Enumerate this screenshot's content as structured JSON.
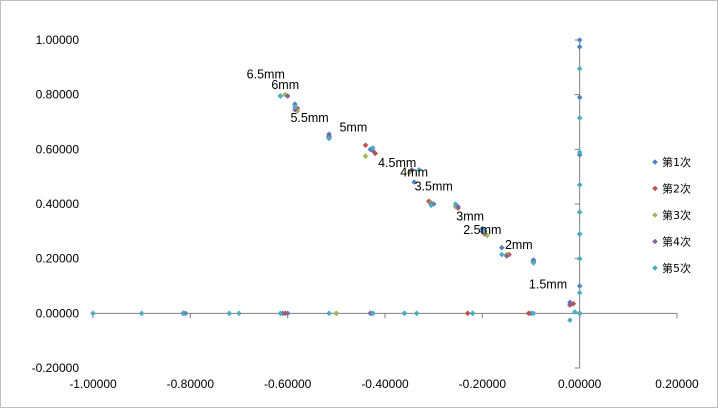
{
  "chart_data": {
    "type": "scatter",
    "xlim": [
      -1.0,
      0.2
    ],
    "ylim": [
      -0.2,
      1.0
    ],
    "x_ticks": [
      -1.0,
      -0.8,
      -0.6,
      -0.4,
      -0.2,
      0.0,
      0.2
    ],
    "y_ticks": [
      -0.2,
      0.0,
      0.2,
      0.4,
      0.6,
      0.8,
      1.0
    ],
    "x_tick_labels": [
      "-1.00000",
      "-0.80000",
      "-0.60000",
      "-0.40000",
      "-0.20000",
      "0.00000",
      "0.20000"
    ],
    "y_tick_labels": [
      "-0.20000",
      "0.00000",
      "0.20000",
      "0.40000",
      "0.60000",
      "0.80000",
      "1.00000"
    ],
    "grid": false,
    "legend_position": "right",
    "series": [
      {
        "name": "第1次",
        "color": "#4f81bd",
        "points": [
          [
            -0.615,
            0.795
          ],
          [
            -0.585,
            0.765
          ],
          [
            -0.515,
            0.655
          ],
          [
            -0.43,
            0.6
          ],
          [
            -0.34,
            0.48
          ],
          [
            -0.3,
            0.4
          ],
          [
            -0.255,
            0.39
          ],
          [
            -0.2,
            0.31
          ],
          [
            -0.16,
            0.24
          ],
          [
            -0.095,
            0.195
          ],
          [
            -0.02,
            0.04
          ],
          [
            0.0,
            1.0
          ],
          [
            0.0,
            0.975
          ],
          [
            0.0,
            0.79
          ],
          [
            0.0,
            0.58
          ],
          [
            0.0,
            0.29
          ],
          [
            0.0,
            0.1
          ],
          [
            0.0,
            0.0
          ],
          [
            -0.6,
            0.0
          ],
          [
            -0.5,
            0.0
          ],
          [
            -0.43,
            0.0
          ],
          [
            -0.36,
            0.0
          ],
          [
            -0.22,
            0.0
          ],
          [
            -0.1,
            0.0
          ],
          [
            -0.81,
            0.0
          ]
        ]
      },
      {
        "name": "第2次",
        "color": "#c0504d",
        "points": [
          [
            -0.605,
            0.8
          ],
          [
            -0.58,
            0.75
          ],
          [
            -0.515,
            0.645
          ],
          [
            -0.44,
            0.615
          ],
          [
            -0.42,
            0.585
          ],
          [
            -0.31,
            0.41
          ],
          [
            -0.25,
            0.385
          ],
          [
            -0.195,
            0.29
          ],
          [
            -0.145,
            0.215
          ],
          [
            -0.02,
            0.03
          ],
          [
            -0.013,
            0.035
          ],
          [
            0.0,
            0.37
          ],
          [
            -0.815,
            0.0
          ],
          [
            -0.605,
            0.0
          ],
          [
            -0.425,
            0.0
          ],
          [
            -0.23,
            0.0
          ],
          [
            -0.105,
            0.0
          ],
          [
            0.0,
            0.0
          ]
        ]
      },
      {
        "name": "第3次",
        "color": "#9bbb59",
        "points": [
          [
            -0.605,
            0.8
          ],
          [
            -0.58,
            0.74
          ],
          [
            -0.515,
            0.64
          ],
          [
            -0.44,
            0.575
          ],
          [
            -0.35,
            0.515
          ],
          [
            -0.305,
            0.405
          ],
          [
            -0.255,
            0.39
          ],
          [
            -0.19,
            0.285
          ],
          [
            -0.15,
            0.215
          ],
          [
            -0.095,
            0.185
          ],
          [
            0.0,
            0.47
          ],
          [
            0.0,
            0.2
          ],
          [
            -0.36,
            0.0
          ],
          [
            -0.5,
            0.0
          ]
        ]
      },
      {
        "name": "第4次",
        "color": "#8064a2",
        "points": [
          [
            -0.6,
            0.795
          ],
          [
            -0.585,
            0.745
          ],
          [
            -0.515,
            0.648
          ],
          [
            -0.425,
            0.595
          ],
          [
            -0.345,
            0.525
          ],
          [
            -0.305,
            0.4
          ],
          [
            -0.25,
            0.39
          ],
          [
            -0.2,
            0.3
          ],
          [
            -0.15,
            0.21
          ],
          [
            -0.095,
            0.19
          ],
          [
            -0.018,
            0.035
          ],
          [
            -0.815,
            0.0
          ],
          [
            -0.61,
            0.0
          ],
          [
            -0.43,
            0.0
          ]
        ]
      },
      {
        "name": "第5次",
        "color": "#4bacc6",
        "points": [
          [
            -0.615,
            0.795
          ],
          [
            -0.585,
            0.755
          ],
          [
            -0.515,
            0.64
          ],
          [
            -0.425,
            0.605
          ],
          [
            -0.33,
            0.525
          ],
          [
            -0.305,
            0.395
          ],
          [
            -0.255,
            0.4
          ],
          [
            -0.195,
            0.3
          ],
          [
            -0.16,
            0.215
          ],
          [
            -0.095,
            0.185
          ],
          [
            -0.02,
            -0.025
          ],
          [
            -0.01,
            0.005
          ],
          [
            0.0,
            0.895
          ],
          [
            0.0,
            0.715
          ],
          [
            0.0,
            0.59
          ],
          [
            0.0,
            0.47
          ],
          [
            0.0,
            0.37
          ],
          [
            0.0,
            0.29
          ],
          [
            0.0,
            0.2
          ],
          [
            0.0,
            0.075
          ],
          [
            0.0,
            0.0
          ],
          [
            -1.0,
            0.0
          ],
          [
            -0.9,
            0.0
          ],
          [
            -0.815,
            0.0
          ],
          [
            -0.72,
            0.0
          ],
          [
            -0.7,
            0.0
          ],
          [
            -0.615,
            0.0
          ],
          [
            -0.515,
            0.0
          ],
          [
            -0.425,
            0.0
          ],
          [
            -0.36,
            0.0
          ],
          [
            -0.335,
            0.0
          ],
          [
            -0.22,
            0.0
          ],
          [
            -0.095,
            0.0
          ]
        ]
      }
    ],
    "annotations": [
      {
        "text": "6.5mm",
        "x": -0.645,
        "y": 0.86
      },
      {
        "text": "6mm",
        "x": -0.605,
        "y": 0.82
      },
      {
        "text": "5.5mm",
        "x": -0.555,
        "y": 0.7
      },
      {
        "text": "5mm",
        "x": -0.465,
        "y": 0.665
      },
      {
        "text": "4.5mm",
        "x": -0.375,
        "y": 0.535
      },
      {
        "text": "4mm",
        "x": -0.34,
        "y": 0.5
      },
      {
        "text": "3.5mm",
        "x": -0.3,
        "y": 0.45
      },
      {
        "text": "3mm",
        "x": -0.225,
        "y": 0.34
      },
      {
        "text": "2.5mm",
        "x": -0.2,
        "y": 0.29
      },
      {
        "text": "2mm",
        "x": -0.125,
        "y": 0.235
      },
      {
        "text": "1.5mm",
        "x": -0.065,
        "y": 0.09
      }
    ]
  }
}
